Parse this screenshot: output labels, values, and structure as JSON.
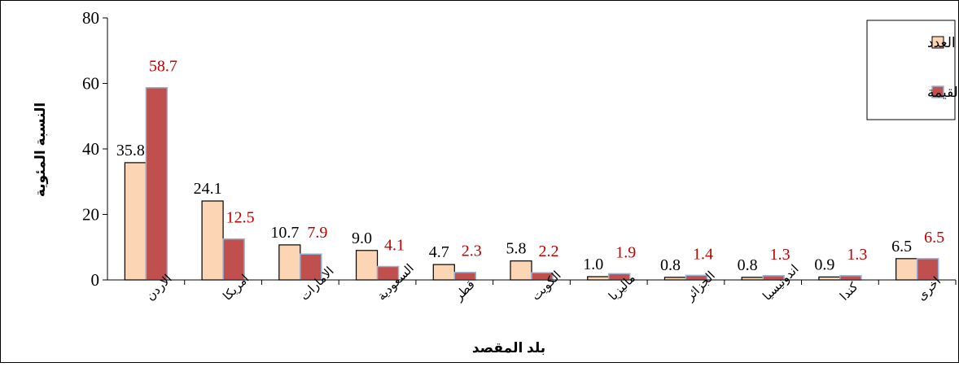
{
  "chart_data": {
    "type": "bar",
    "categories": [
      "الاردن",
      "امريكا",
      "الامارات",
      "السعودية",
      "قطر",
      "الكويت",
      "ماليزيا",
      "الجزائر",
      "اندونيسيا",
      "كندا",
      "اخرى"
    ],
    "series": [
      {
        "name": "العدد",
        "values": [
          35.8,
          24.1,
          10.7,
          9.0,
          4.7,
          5.8,
          1.0,
          0.8,
          0.8,
          0.9,
          6.5
        ],
        "labels": [
          "35.8",
          "24.1",
          "10.7",
          "9.0",
          "4.7",
          "5.8",
          "1.0",
          "0.8",
          "0.8",
          "0.9",
          "6.5"
        ],
        "color": "#FCD5B4",
        "stroke": "#000000",
        "label_color": "#000000"
      },
      {
        "name": "القيمة",
        "values": [
          58.7,
          12.5,
          7.9,
          4.1,
          2.3,
          2.2,
          1.9,
          1.4,
          1.3,
          1.3,
          6.5
        ],
        "labels": [
          "58.7",
          "12.5",
          "7.9",
          "4.1",
          "2.3",
          "2.2",
          "1.9",
          "1.4",
          "1.3",
          "1.3",
          "6.5"
        ],
        "color": "#C0504D",
        "stroke": "#95B3D7",
        "label_color": "#C00000"
      }
    ],
    "xlabel": "بلد المقصد",
    "ylabel": "النسبة المئوية",
    "ylim": [
      0,
      80
    ],
    "yticks": [
      "0",
      "20",
      "40",
      "60",
      "80"
    ],
    "grid": false,
    "legend_position": "top-right"
  }
}
